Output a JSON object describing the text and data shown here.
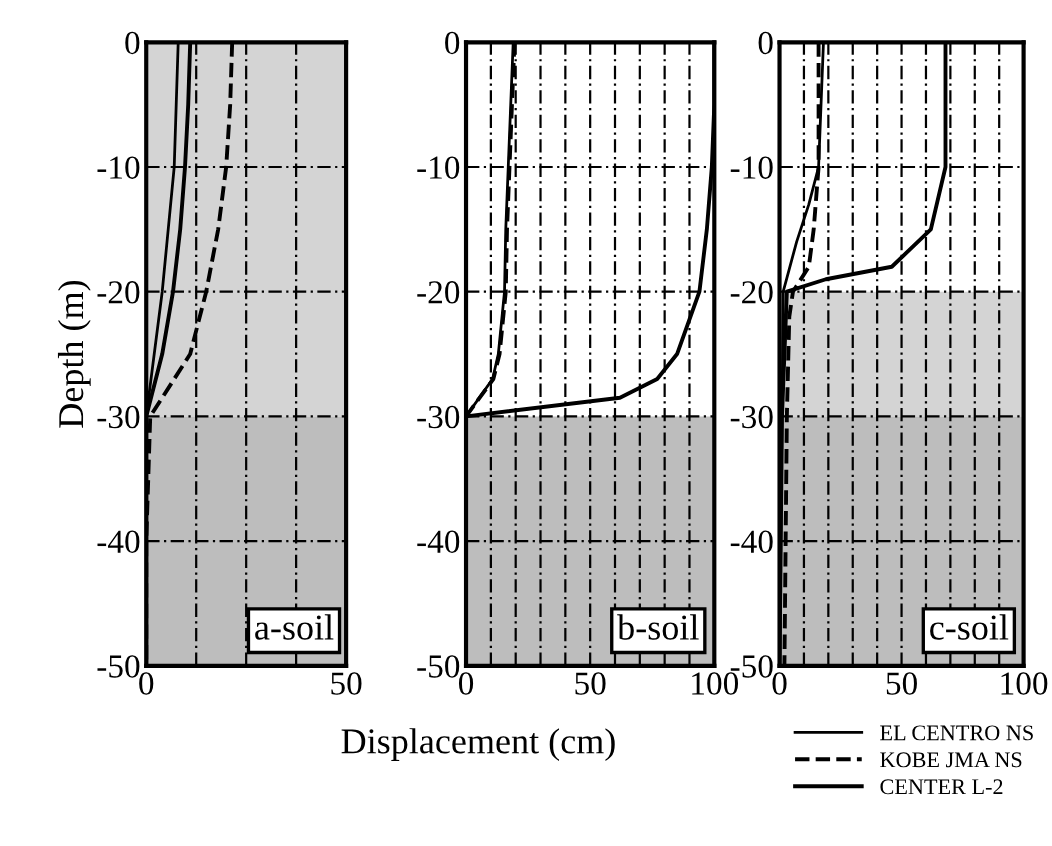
{
  "chart_data": [
    {
      "type": "line",
      "ylabel": "Depth (m)",
      "annotations": [
        "a-soil"
      ],
      "xlim": [
        0,
        50
      ],
      "ylim": [
        -50,
        0
      ],
      "xticks": [
        0,
        {
          "value": 12.5,
          "label": null
        },
        {
          "value": 25,
          "label": null
        },
        {
          "value": 37.5,
          "label": null
        },
        50
      ],
      "yticks": [
        0,
        -10,
        -20,
        -30,
        -40,
        -50
      ],
      "grid": true,
      "legend": false,
      "bands": [
        {
          "axis": "y",
          "from": 0,
          "to": -30,
          "color": "#d4d4d4"
        },
        {
          "axis": "y",
          "from": -30,
          "to": -50,
          "color": "#bdbdbd"
        }
      ],
      "series": [
        {
          "color": "#000000",
          "line_style": "solid",
          "x": [
            8,
            7.5,
            7,
            5.5,
            4,
            2,
            0,
            0,
            0
          ],
          "values": [
            0,
            -5,
            -10,
            -15,
            -20,
            -25,
            -30,
            -40,
            -50
          ]
        },
        {
          "color": "#000000",
          "line_style": "dashed",
          "x": [
            21.5,
            21,
            20,
            18,
            15,
            11,
            1,
            0,
            0
          ],
          "values": [
            0,
            -5,
            -10,
            -15,
            -20,
            -25,
            -30,
            -40,
            -50
          ]
        },
        {
          "color": "#000000",
          "line_style": "solid",
          "x": [
            11,
            10.5,
            9.7,
            8.5,
            6.7,
            4,
            0,
            0,
            0
          ],
          "values": [
            0,
            -5,
            -10,
            -15,
            -20,
            -25,
            -30,
            -40,
            -50
          ]
        }
      ]
    },
    {
      "type": "line",
      "xlabel": "Displacement (cm)",
      "annotations": [
        "b-soil"
      ],
      "xlim": [
        0,
        100
      ],
      "ylim": [
        -50,
        0
      ],
      "xticks": [
        0,
        {
          "value": 10,
          "label": null
        },
        {
          "value": 20,
          "label": null
        },
        {
          "value": 30,
          "label": null
        },
        {
          "value": 40,
          "label": null
        },
        50,
        {
          "value": 60,
          "label": null
        },
        {
          "value": 70,
          "label": null
        },
        {
          "value": 80,
          "label": null
        },
        {
          "value": 90,
          "label": null
        },
        100
      ],
      "yticks": [
        0,
        -10,
        -20,
        -30,
        -40,
        -50
      ],
      "grid": true,
      "legend": false,
      "bands": [
        {
          "axis": "y",
          "from": -30,
          "to": -50,
          "color": "#bdbdbd"
        }
      ],
      "series": [
        {
          "color": "#000000",
          "line_style": "solid",
          "x": [
            19,
            18,
            17,
            16,
            15.5,
            13,
            10.7,
            0,
            0,
            0
          ],
          "values": [
            0,
            -5,
            -10,
            -15,
            -20,
            -25,
            -27,
            -30,
            -40,
            -50
          ]
        },
        {
          "color": "#000000",
          "line_style": "dashed",
          "x": [
            19.5,
            18.5,
            17.5,
            16.5,
            16,
            13.5,
            11,
            0,
            0,
            0
          ],
          "values": [
            0,
            -5,
            -10,
            -15,
            -20,
            -25,
            -27,
            -30,
            -40,
            -50
          ]
        },
        {
          "color": "#000000",
          "line_style": "solid",
          "x": [
            100,
            100,
            99,
            97,
            94,
            85,
            77,
            62,
            0,
            0,
            0
          ],
          "values": [
            0,
            -5,
            -10,
            -15,
            -20,
            -25,
            -27,
            -28.5,
            -30,
            -40,
            -50
          ]
        }
      ]
    },
    {
      "type": "line",
      "annotations": [
        "c-soil"
      ],
      "xlim": [
        0,
        100
      ],
      "ylim": [
        -50,
        0
      ],
      "xticks": [
        0,
        {
          "value": 10,
          "label": null
        },
        {
          "value": 20,
          "label": null
        },
        {
          "value": 30,
          "label": null
        },
        {
          "value": 40,
          "label": null
        },
        50,
        {
          "value": 60,
          "label": null
        },
        {
          "value": 70,
          "label": null
        },
        {
          "value": 80,
          "label": null
        },
        {
          "value": 90,
          "label": null
        },
        100
      ],
      "yticks": [
        0,
        -10,
        -20,
        -30,
        -40,
        -50
      ],
      "grid": true,
      "legend": "bottom right",
      "bands": [
        {
          "axis": "y",
          "from": -20,
          "to": -30,
          "color": "#d4d4d4"
        },
        {
          "axis": "y",
          "from": -30,
          "to": -50,
          "color": "#bdbdbd"
        }
      ],
      "series": [
        {
          "name": "EL CENTRO NS",
          "color": "#000000",
          "line_style": "solid",
          "x": [
            18,
            17,
            16,
            12,
            7,
            1.5,
            1,
            0.5,
            0
          ],
          "values": [
            0,
            -5,
            -10,
            -13,
            -16,
            -20,
            -30,
            -40,
            -50
          ]
        },
        {
          "name": "KOBE JMA NS",
          "color": "#000000",
          "line_style": "dashed",
          "x": [
            16,
            16,
            16,
            14,
            12,
            5.5,
            4,
            3,
            2.5,
            2
          ],
          "values": [
            0,
            -5,
            -10,
            -15,
            -18,
            -20,
            -22,
            -30,
            -40,
            -50
          ]
        },
        {
          "name": "CENTER L-2",
          "color": "#000000",
          "line_style": "solid",
          "x": [
            68,
            68,
            68,
            62,
            46,
            19,
            3,
            1,
            0.5,
            0
          ],
          "values": [
            0,
            -5,
            -10,
            -15,
            -18,
            -19,
            -20,
            -30,
            -40,
            -50
          ]
        }
      ]
    }
  ]
}
